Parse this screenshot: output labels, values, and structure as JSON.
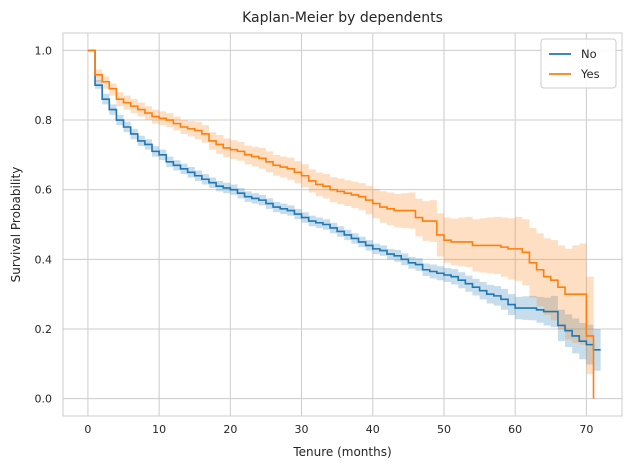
{
  "chart_data": {
    "type": "line",
    "title": "Kaplan-Meier by dependents",
    "xlabel": "Tenure (months)",
    "ylabel": "Survival Probability",
    "xlim": [
      -3.5,
      75
    ],
    "ylim": [
      -0.05,
      1.05
    ],
    "xticks": [
      0,
      10,
      20,
      30,
      40,
      50,
      60,
      70
    ],
    "yticks": [
      0.0,
      0.2,
      0.4,
      0.6,
      0.8,
      1.0
    ],
    "xtick_labels": [
      "0",
      "10",
      "20",
      "30",
      "40",
      "50",
      "60",
      "70"
    ],
    "ytick_labels": [
      "0.0",
      "0.2",
      "0.4",
      "0.6",
      "0.8",
      "1.0"
    ],
    "grid": true,
    "legend_position": "top-right",
    "step": "post",
    "series": [
      {
        "name": "No",
        "color": "#1f77b4",
        "x": [
          0,
          1,
          2,
          3,
          4,
          5,
          6,
          7,
          8,
          9,
          10,
          11,
          12,
          13,
          14,
          15,
          16,
          17,
          18,
          19,
          20,
          21,
          22,
          23,
          24,
          25,
          26,
          27,
          28,
          29,
          30,
          31,
          32,
          33,
          34,
          35,
          36,
          37,
          38,
          39,
          40,
          41,
          42,
          43,
          44,
          45,
          46,
          47,
          48,
          49,
          50,
          51,
          52,
          53,
          54,
          55,
          56,
          57,
          58,
          59,
          60,
          61,
          62,
          63,
          64,
          65,
          66,
          67,
          68,
          69,
          70,
          71,
          72
        ],
        "y": [
          1.0,
          0.9,
          0.86,
          0.83,
          0.8,
          0.78,
          0.76,
          0.74,
          0.73,
          0.71,
          0.7,
          0.68,
          0.67,
          0.66,
          0.65,
          0.64,
          0.63,
          0.62,
          0.61,
          0.605,
          0.6,
          0.59,
          0.58,
          0.575,
          0.57,
          0.56,
          0.55,
          0.545,
          0.54,
          0.53,
          0.52,
          0.51,
          0.505,
          0.5,
          0.49,
          0.48,
          0.47,
          0.46,
          0.45,
          0.44,
          0.43,
          0.425,
          0.415,
          0.41,
          0.4,
          0.39,
          0.385,
          0.37,
          0.365,
          0.36,
          0.355,
          0.35,
          0.34,
          0.33,
          0.32,
          0.31,
          0.3,
          0.295,
          0.285,
          0.27,
          0.26,
          0.26,
          0.26,
          0.255,
          0.25,
          0.25,
          0.21,
          0.195,
          0.18,
          0.165,
          0.155,
          0.14,
          0.14
        ],
        "ci_lower": [
          1.0,
          0.89,
          0.845,
          0.815,
          0.785,
          0.765,
          0.745,
          0.725,
          0.715,
          0.695,
          0.685,
          0.665,
          0.655,
          0.645,
          0.635,
          0.625,
          0.615,
          0.605,
          0.595,
          0.59,
          0.585,
          0.575,
          0.565,
          0.56,
          0.555,
          0.545,
          0.535,
          0.53,
          0.525,
          0.515,
          0.505,
          0.495,
          0.49,
          0.485,
          0.475,
          0.465,
          0.455,
          0.445,
          0.435,
          0.425,
          0.415,
          0.41,
          0.4,
          0.393,
          0.383,
          0.373,
          0.367,
          0.352,
          0.345,
          0.34,
          0.335,
          0.328,
          0.317,
          0.307,
          0.296,
          0.285,
          0.273,
          0.267,
          0.255,
          0.24,
          0.228,
          0.226,
          0.225,
          0.218,
          0.21,
          0.205,
          0.165,
          0.148,
          0.13,
          0.113,
          0.098,
          0.08,
          0.08
        ],
        "ci_upper": [
          1.0,
          0.915,
          0.875,
          0.845,
          0.815,
          0.795,
          0.775,
          0.755,
          0.745,
          0.725,
          0.715,
          0.695,
          0.685,
          0.675,
          0.665,
          0.655,
          0.645,
          0.635,
          0.625,
          0.62,
          0.615,
          0.605,
          0.595,
          0.59,
          0.585,
          0.575,
          0.565,
          0.56,
          0.555,
          0.545,
          0.535,
          0.525,
          0.52,
          0.515,
          0.505,
          0.495,
          0.485,
          0.475,
          0.465,
          0.455,
          0.445,
          0.44,
          0.43,
          0.427,
          0.417,
          0.407,
          0.403,
          0.388,
          0.385,
          0.38,
          0.375,
          0.372,
          0.363,
          0.353,
          0.344,
          0.335,
          0.327,
          0.323,
          0.315,
          0.3,
          0.292,
          0.294,
          0.295,
          0.292,
          0.29,
          0.295,
          0.255,
          0.242,
          0.23,
          0.217,
          0.212,
          0.2,
          0.2
        ]
      },
      {
        "name": "Yes",
        "color": "#ff7f0e",
        "x": [
          0,
          1,
          2,
          3,
          4,
          5,
          6,
          7,
          8,
          9,
          10,
          11,
          12,
          13,
          14,
          15,
          16,
          17,
          18,
          19,
          20,
          21,
          22,
          23,
          24,
          25,
          26,
          27,
          28,
          29,
          30,
          31,
          32,
          33,
          34,
          35,
          36,
          37,
          38,
          39,
          40,
          41,
          42,
          43,
          44,
          45,
          46,
          47,
          48,
          49,
          50,
          51,
          52,
          53,
          54,
          55,
          56,
          57,
          58,
          59,
          60,
          61,
          62,
          63,
          64,
          65,
          66,
          67,
          68,
          69,
          70,
          71
        ],
        "y": [
          1.0,
          0.93,
          0.91,
          0.89,
          0.86,
          0.85,
          0.84,
          0.83,
          0.82,
          0.81,
          0.805,
          0.8,
          0.79,
          0.78,
          0.775,
          0.77,
          0.76,
          0.74,
          0.73,
          0.72,
          0.715,
          0.71,
          0.7,
          0.695,
          0.69,
          0.68,
          0.67,
          0.665,
          0.66,
          0.65,
          0.64,
          0.625,
          0.615,
          0.61,
          0.6,
          0.595,
          0.59,
          0.585,
          0.58,
          0.57,
          0.56,
          0.55,
          0.545,
          0.54,
          0.54,
          0.54,
          0.52,
          0.51,
          0.51,
          0.47,
          0.455,
          0.45,
          0.45,
          0.45,
          0.44,
          0.44,
          0.44,
          0.44,
          0.435,
          0.43,
          0.43,
          0.42,
          0.39,
          0.37,
          0.35,
          0.34,
          0.32,
          0.3,
          0.3,
          0.3,
          0.18,
          0.0
        ],
        "ci_lower": [
          1.0,
          0.91,
          0.89,
          0.87,
          0.84,
          0.83,
          0.82,
          0.81,
          0.8,
          0.79,
          0.785,
          0.78,
          0.77,
          0.76,
          0.753,
          0.745,
          0.735,
          0.715,
          0.703,
          0.693,
          0.688,
          0.683,
          0.673,
          0.667,
          0.66,
          0.65,
          0.64,
          0.635,
          0.628,
          0.618,
          0.607,
          0.592,
          0.581,
          0.575,
          0.564,
          0.558,
          0.553,
          0.547,
          0.541,
          0.529,
          0.518,
          0.505,
          0.498,
          0.492,
          0.49,
          0.488,
          0.466,
          0.453,
          0.45,
          0.408,
          0.39,
          0.383,
          0.38,
          0.378,
          0.365,
          0.362,
          0.36,
          0.358,
          0.35,
          0.342,
          0.338,
          0.325,
          0.29,
          0.265,
          0.24,
          0.225,
          0.2,
          0.17,
          0.16,
          0.155,
          0.07,
          0.0
        ],
        "ci_upper": [
          1.0,
          0.945,
          0.925,
          0.905,
          0.88,
          0.87,
          0.86,
          0.85,
          0.84,
          0.83,
          0.825,
          0.82,
          0.81,
          0.8,
          0.797,
          0.795,
          0.785,
          0.765,
          0.757,
          0.747,
          0.742,
          0.737,
          0.727,
          0.723,
          0.72,
          0.71,
          0.7,
          0.695,
          0.692,
          0.682,
          0.673,
          0.658,
          0.649,
          0.645,
          0.636,
          0.632,
          0.627,
          0.623,
          0.619,
          0.611,
          0.602,
          0.595,
          0.592,
          0.588,
          0.59,
          0.592,
          0.574,
          0.567,
          0.57,
          0.532,
          0.52,
          0.517,
          0.52,
          0.522,
          0.515,
          0.518,
          0.52,
          0.522,
          0.52,
          0.518,
          0.522,
          0.515,
          0.49,
          0.475,
          0.46,
          0.455,
          0.44,
          0.43,
          0.44,
          0.445,
          0.35,
          0.0
        ]
      }
    ]
  }
}
